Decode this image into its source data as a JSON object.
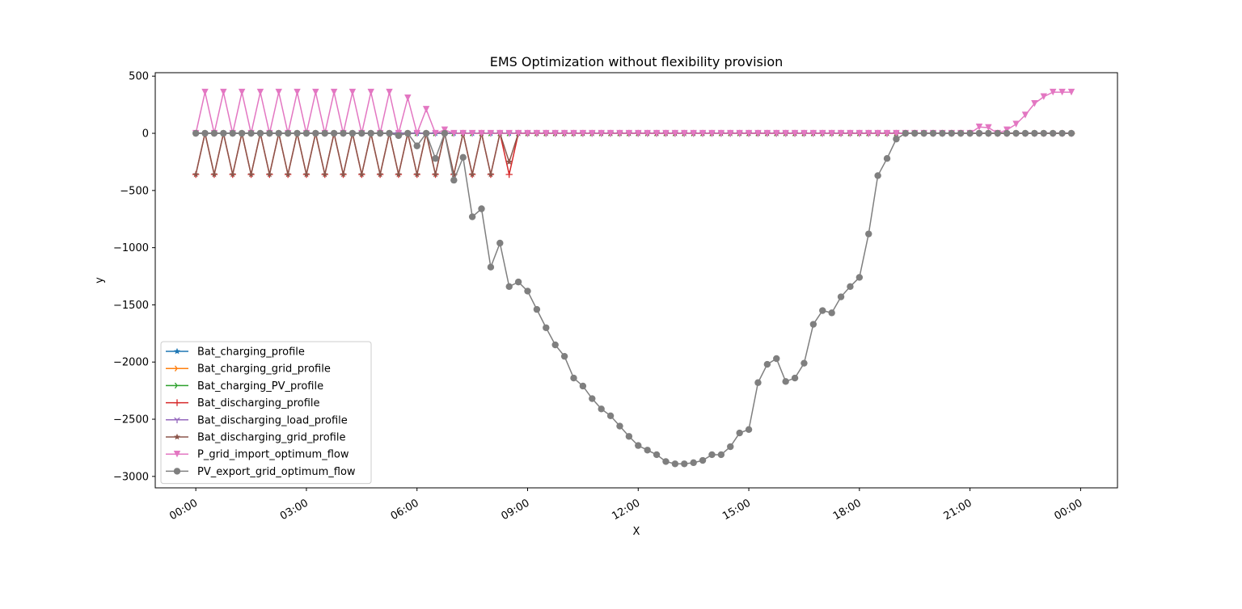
{
  "chart_data": {
    "type": "line",
    "title": "EMS Optimization without flexibility provision",
    "xlabel": "X",
    "ylabel": "y",
    "ylim": [
      -3100,
      530
    ],
    "xlim_hours": [
      -1.1,
      25.0
    ],
    "yticks": [
      500,
      0,
      -500,
      -1000,
      -1500,
      -2000,
      -2500,
      -3000
    ],
    "ytick_labels": [
      "500",
      "0",
      "−500",
      "−1000",
      "−1500",
      "−2000",
      "−2500",
      "−3000"
    ],
    "xticks_hours": [
      0,
      3,
      6,
      9,
      12,
      15,
      18,
      21,
      24
    ],
    "xtick_labels": [
      "00:00",
      "03:00",
      "06:00",
      "09:00",
      "12:00",
      "15:00",
      "18:00",
      "21:00",
      "00:00"
    ],
    "x_step_minutes": 15,
    "grid": false,
    "legend_position": "lower-left",
    "series": [
      {
        "name": "Bat_charging_profile",
        "color": "#1f77b4",
        "marker": "star",
        "values": [
          0,
          0,
          0,
          0,
          0,
          0,
          0,
          0,
          0,
          0,
          0,
          0,
          0,
          0,
          0,
          0,
          0,
          0,
          0,
          0,
          0,
          0,
          0,
          0,
          0,
          0,
          0,
          0,
          0,
          0,
          0,
          0,
          0,
          0,
          0,
          0,
          0,
          0,
          0,
          0,
          0,
          0,
          0,
          0,
          0,
          0,
          0,
          0,
          0,
          0,
          0,
          0,
          0,
          0,
          0,
          0,
          0,
          0,
          0,
          0,
          0,
          0,
          0,
          0,
          0,
          0,
          0,
          0,
          0,
          0,
          0,
          0,
          0,
          0,
          0,
          0,
          0,
          0,
          0,
          0,
          0,
          0,
          0,
          0,
          0,
          0,
          0,
          0,
          0,
          0,
          0,
          0,
          0,
          0,
          0,
          0
        ]
      },
      {
        "name": "Bat_charging_grid_profile",
        "color": "#ff7f0e",
        "marker": "tri_right",
        "values": [
          0,
          0,
          0,
          0,
          0,
          0,
          0,
          0,
          0,
          0,
          0,
          0,
          0,
          0,
          0,
          0,
          0,
          0,
          0,
          0,
          0,
          0,
          0,
          0,
          0,
          0,
          0,
          0,
          0,
          0,
          0,
          0,
          0,
          0,
          0,
          0,
          0,
          0,
          0,
          0,
          0,
          0,
          0,
          0,
          0,
          0,
          0,
          0,
          0,
          0,
          0,
          0,
          0,
          0,
          0,
          0,
          0,
          0,
          0,
          0,
          0,
          0,
          0,
          0,
          0,
          0,
          0,
          0,
          0,
          0,
          0,
          0,
          0,
          0,
          0,
          0,
          0,
          0,
          0,
          0,
          0,
          0,
          0,
          0,
          0,
          0,
          0,
          0,
          0,
          0,
          0,
          0,
          0,
          0,
          0,
          0
        ]
      },
      {
        "name": "Bat_charging_PV_profile",
        "color": "#2ca02c",
        "marker": "tri_right",
        "values": [
          0,
          0,
          0,
          0,
          0,
          0,
          0,
          0,
          0,
          0,
          0,
          0,
          0,
          0,
          0,
          0,
          0,
          0,
          0,
          0,
          0,
          0,
          0,
          0,
          0,
          0,
          0,
          0,
          0,
          0,
          0,
          0,
          0,
          0,
          0,
          0,
          0,
          0,
          0,
          0,
          0,
          0,
          0,
          0,
          0,
          0,
          0,
          0,
          0,
          0,
          0,
          0,
          0,
          0,
          0,
          0,
          0,
          0,
          0,
          0,
          0,
          0,
          0,
          0,
          0,
          0,
          0,
          0,
          0,
          0,
          0,
          0,
          0,
          0,
          0,
          0,
          0,
          0,
          0,
          0,
          0,
          0,
          0,
          0,
          0,
          0,
          0,
          0,
          0,
          0,
          0,
          0,
          0,
          0,
          0,
          0
        ]
      },
      {
        "name": "Bat_discharging_profile",
        "color": "#d62728",
        "marker": "plus",
        "values": [
          -360,
          0,
          -360,
          0,
          -360,
          0,
          -360,
          0,
          -360,
          0,
          -360,
          0,
          -360,
          0,
          -360,
          0,
          -360,
          0,
          -360,
          0,
          -360,
          0,
          -360,
          0,
          -360,
          0,
          -360,
          0,
          -360,
          0,
          -360,
          0,
          -360,
          0,
          -360,
          0,
          0,
          0,
          0,
          0,
          0,
          0,
          0,
          0,
          0,
          0,
          0,
          0,
          0,
          0,
          0,
          0,
          0,
          0,
          0,
          0,
          0,
          0,
          0,
          0,
          0,
          0,
          0,
          0,
          0,
          0,
          0,
          0,
          0,
          0,
          0,
          0,
          0,
          0,
          0,
          0,
          0,
          0,
          0,
          0,
          0,
          0,
          0,
          0,
          0,
          0,
          0,
          0,
          0,
          0,
          0,
          0,
          0,
          0,
          0,
          0
        ]
      },
      {
        "name": "Bat_discharging_load_profile",
        "color": "#9467bd",
        "marker": "tri_down",
        "values": [
          0,
          0,
          0,
          0,
          0,
          0,
          0,
          0,
          0,
          0,
          0,
          0,
          0,
          0,
          0,
          0,
          0,
          0,
          0,
          0,
          0,
          0,
          0,
          0,
          0,
          0,
          0,
          0,
          0,
          0,
          0,
          0,
          0,
          0,
          0,
          0,
          0,
          0,
          0,
          0,
          0,
          0,
          0,
          0,
          0,
          0,
          0,
          0,
          0,
          0,
          0,
          0,
          0,
          0,
          0,
          0,
          0,
          0,
          0,
          0,
          0,
          0,
          0,
          0,
          0,
          0,
          0,
          0,
          0,
          0,
          0,
          0,
          0,
          0,
          0,
          0,
          0,
          0,
          0,
          0,
          0,
          0,
          0,
          0,
          0,
          0,
          0,
          0,
          0,
          0,
          0,
          0,
          0,
          0,
          0,
          0
        ]
      },
      {
        "name": "Bat_discharging_grid_profile",
        "color": "#8c564b",
        "marker": "star",
        "values": [
          -360,
          0,
          -360,
          0,
          -360,
          0,
          -360,
          0,
          -360,
          0,
          -360,
          0,
          -360,
          0,
          -360,
          0,
          -360,
          0,
          -360,
          0,
          -360,
          0,
          -360,
          0,
          -360,
          0,
          -360,
          0,
          -360,
          0,
          -360,
          0,
          -360,
          0,
          -250,
          0,
          0,
          0,
          0,
          0,
          0,
          0,
          0,
          0,
          0,
          0,
          0,
          0,
          0,
          0,
          0,
          0,
          0,
          0,
          0,
          0,
          0,
          0,
          0,
          0,
          0,
          0,
          0,
          0,
          0,
          0,
          0,
          0,
          0,
          0,
          0,
          0,
          0,
          0,
          0,
          0,
          0,
          0,
          0,
          0,
          0,
          0,
          0,
          0,
          0,
          0,
          0,
          0,
          0,
          0,
          0,
          0,
          0,
          0,
          0,
          0
        ]
      },
      {
        "name": "P_grid_import_optimum_flow",
        "color": "#e377c2",
        "marker": "triangle_down",
        "values": [
          0,
          360,
          0,
          360,
          0,
          360,
          0,
          360,
          0,
          360,
          0,
          360,
          0,
          360,
          0,
          360,
          0,
          360,
          0,
          360,
          0,
          360,
          0,
          310,
          0,
          210,
          0,
          30,
          0,
          0,
          0,
          0,
          0,
          0,
          0,
          0,
          0,
          0,
          0,
          0,
          0,
          0,
          0,
          0,
          0,
          0,
          0,
          0,
          0,
          0,
          0,
          0,
          0,
          0,
          0,
          0,
          0,
          0,
          0,
          0,
          0,
          0,
          0,
          0,
          0,
          0,
          0,
          0,
          0,
          0,
          0,
          0,
          0,
          0,
          0,
          0,
          0,
          0,
          0,
          0,
          0,
          0,
          0,
          0,
          0,
          55,
          50,
          0,
          30,
          80,
          160,
          260,
          320,
          360,
          360,
          360
        ]
      },
      {
        "name": "PV_export_grid_optimum_flow",
        "color": "#7f7f7f",
        "marker": "circle",
        "values": [
          0,
          0,
          0,
          0,
          0,
          0,
          0,
          0,
          0,
          0,
          0,
          0,
          0,
          0,
          0,
          0,
          0,
          0,
          0,
          0,
          0,
          0,
          -20,
          0,
          -110,
          0,
          -220,
          0,
          -410,
          -210,
          -730,
          -660,
          -1170,
          -960,
          -1340,
          -1300,
          -1380,
          -1540,
          -1700,
          -1850,
          -1950,
          -2140,
          -2210,
          -2320,
          -2410,
          -2470,
          -2560,
          -2650,
          -2730,
          -2770,
          -2810,
          -2870,
          -2890,
          -2890,
          -2880,
          -2860,
          -2810,
          -2810,
          -2740,
          -2620,
          -2590,
          -2180,
          -2020,
          -1970,
          -2170,
          -2140,
          -2010,
          -1670,
          -1550,
          -1570,
          -1430,
          -1340,
          -1260,
          -880,
          -370,
          -220,
          -50,
          0,
          0,
          0,
          0,
          0,
          0,
          0,
          0,
          0,
          0,
          0,
          0,
          0,
          0,
          0,
          0,
          0,
          0,
          0
        ]
      }
    ]
  }
}
